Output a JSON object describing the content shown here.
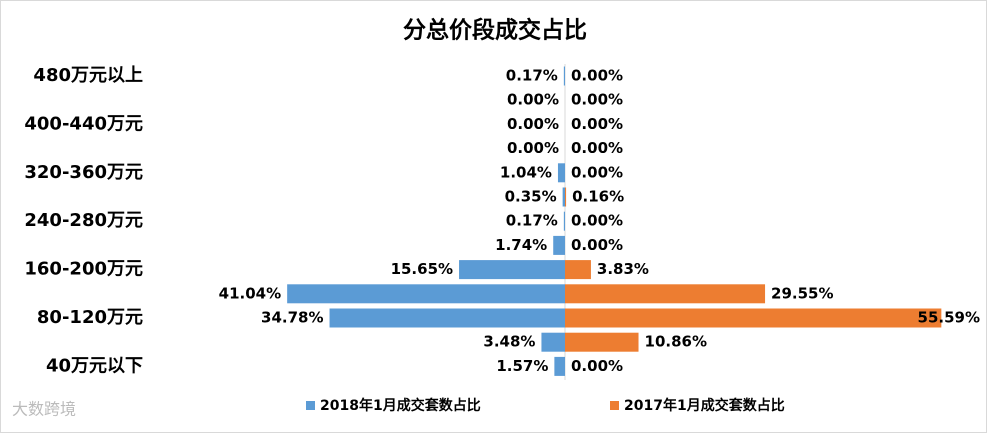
{
  "chart_data": {
    "type": "butterfly-bar",
    "title": "分总价段成交占比",
    "categories": [
      "480万元以上",
      null,
      "400-440万元",
      null,
      "320-360万元",
      null,
      "240-280万元",
      null,
      "160-200万元",
      null,
      "80-120万元",
      null,
      "40万元以下"
    ],
    "series": [
      {
        "name": "2018年1月成交套数占比",
        "color": "#5b9bd5",
        "side": "left",
        "values": [
          0.17,
          0,
          0,
          0,
          1.04,
          0.35,
          0.17,
          1.74,
          15.65,
          41.04,
          34.78,
          3.48,
          1.57
        ],
        "value_labels": [
          "0.17%",
          "0.00%",
          "0.00%",
          "0.00%",
          "1.04%",
          "0.35%",
          "0.17%",
          "1.74%",
          "15.65%",
          "41.04%",
          "34.78%",
          "3.48%",
          "1.57%"
        ]
      },
      {
        "name": "2017年1月成交套数占比",
        "color": "#ed7d31",
        "side": "right",
        "values": [
          0,
          0,
          0,
          0,
          0,
          0.16,
          0,
          0,
          3.83,
          29.55,
          55.59,
          10.86,
          0
        ],
        "value_labels": [
          "0.00%",
          "0.00%",
          "0.00%",
          "0.00%",
          "0.00%",
          "0.16%",
          "0.00%",
          "0.00%",
          "3.83%",
          "29.55%",
          "55.59%",
          "10.86%",
          "0.00%"
        ]
      }
    ],
    "watermark": "大数跨境"
  }
}
